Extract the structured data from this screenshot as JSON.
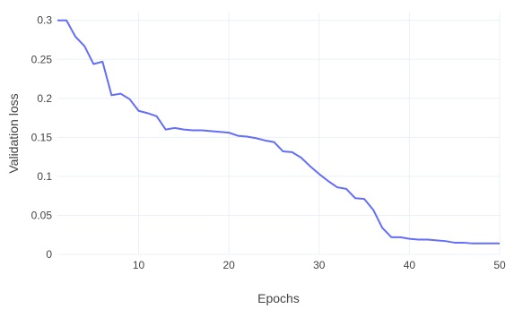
{
  "chart_data": {
    "type": "line",
    "title": "",
    "xlabel": "Epochs",
    "ylabel": "Validation loss",
    "xlim": [
      1,
      50
    ],
    "ylim": [
      0,
      0.31
    ],
    "x_ticks": [
      10,
      20,
      30,
      40,
      50
    ],
    "x_tick_labels": [
      "10",
      "20",
      "30",
      "40",
      "50"
    ],
    "y_ticks": [
      0,
      0.05,
      0.1,
      0.15,
      0.2,
      0.25,
      0.3
    ],
    "y_tick_labels": [
      "0",
      "0.05",
      "0.1",
      "0.15",
      "0.2",
      "0.25",
      "0.3"
    ],
    "grid": true,
    "legend": "none",
    "colors": {
      "line": "#636EFA",
      "grid": "#EBF0F8",
      "text": "#444444",
      "background": "#FFFFFF"
    },
    "series": [
      {
        "x": [
          1,
          2,
          3,
          4,
          5,
          6,
          7,
          8,
          9,
          10,
          11,
          12,
          13,
          14,
          15,
          16,
          17,
          18,
          19,
          20,
          21,
          22,
          23,
          24,
          25,
          26,
          27,
          28,
          29,
          30,
          31,
          32,
          33,
          34,
          35,
          36,
          37,
          38,
          39,
          40,
          41,
          42,
          43,
          44,
          45,
          46,
          47,
          48,
          49,
          50
        ],
        "values": [
          0.3,
          0.3,
          0.279,
          0.267,
          0.244,
          0.247,
          0.204,
          0.206,
          0.199,
          0.184,
          0.181,
          0.177,
          0.16,
          0.162,
          0.16,
          0.159,
          0.159,
          0.158,
          0.157,
          0.156,
          0.152,
          0.151,
          0.149,
          0.146,
          0.144,
          0.132,
          0.131,
          0.124,
          0.113,
          0.103,
          0.094,
          0.086,
          0.084,
          0.072,
          0.071,
          0.057,
          0.034,
          0.022,
          0.022,
          0.02,
          0.019,
          0.019,
          0.018,
          0.017,
          0.015,
          0.015,
          0.014,
          0.014,
          0.014,
          0.014
        ]
      }
    ]
  }
}
